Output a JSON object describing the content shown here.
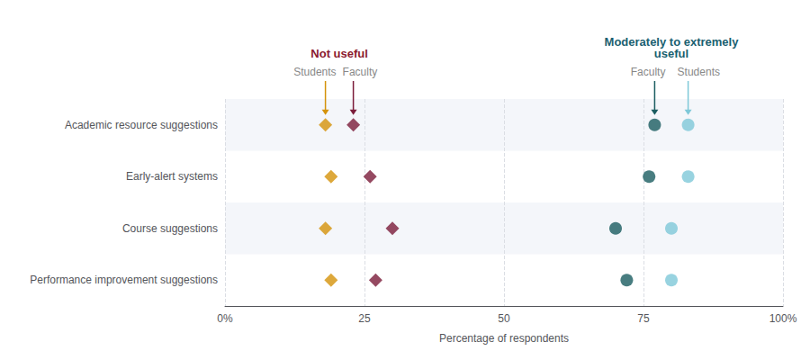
{
  "chart_data": {
    "type": "scatter",
    "orientation": "horizontal",
    "categories": [
      "Academic resource suggestions",
      "Early-alert systems",
      "Course suggestions",
      "Performance improvement suggestions"
    ],
    "series": [
      {
        "name": "Students",
        "color": "#D4920A",
        "marker": "diamond",
        "values": [
          18,
          19,
          18,
          19
        ]
      },
      {
        "name": "Faculty",
        "color": "#7B1C3A",
        "marker": "diamond",
        "values": [
          23,
          26,
          30,
          27
        ]
      },
      {
        "name": "Faculty",
        "color": "#1A5C60",
        "marker": "circle",
        "values": [
          77,
          76,
          70,
          72
        ]
      },
      {
        "name": "Students",
        "color": "#7EC8D8",
        "marker": "circle",
        "values": [
          83,
          83,
          80,
          80
        ]
      }
    ],
    "annotations": [
      {
        "text": "Not useful",
        "color": "#8B1A2E"
      },
      {
        "text": "Moderately to extremely\nuseful",
        "color": "#1A6070"
      }
    ],
    "xlabel": "Percentage of respondents",
    "xlim": [
      0,
      100
    ],
    "xticks": [
      {
        "value": 0,
        "label": "0%"
      },
      25,
      50,
      75,
      {
        "value": 100,
        "label": "100%"
      }
    ],
    "grid": true
  }
}
